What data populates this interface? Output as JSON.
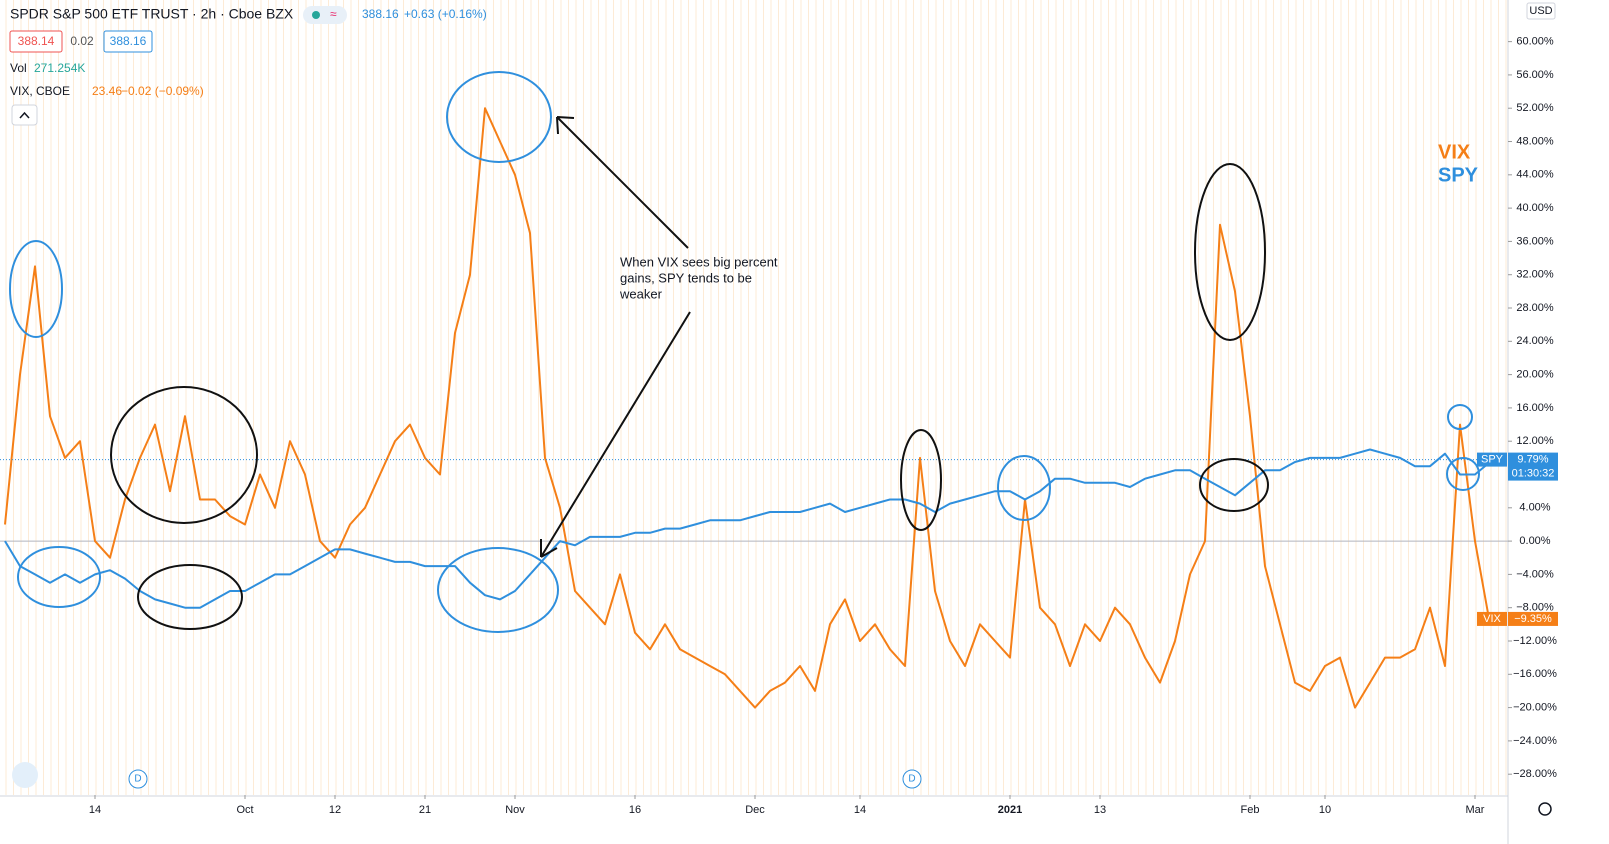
{
  "chart_data": {
    "type": "line",
    "title": "SPDR S&P 500 ETF TRUST · 2h · Cboe BZX",
    "header_price": "388.16",
    "header_change": "+0.63 (+0.16%)",
    "bid": "388.14",
    "spread": "0.02",
    "ask": "388.16",
    "volume_label": "Vol",
    "volume_value": "271.254K",
    "compare_label": "VIX, CBOE",
    "compare_price": "23.46",
    "compare_change": "−0.02 (−0.09%)",
    "currency": "USD",
    "annotation": [
      "When VIX sees big percent",
      "gains, SPY tends to be",
      "weaker"
    ],
    "categories": [
      null,
      null,
      null,
      null,
      null,
      null,
      "14",
      null,
      null,
      null,
      null,
      null,
      null,
      null,
      null,
      null,
      "Oct",
      null,
      null,
      null,
      null,
      null,
      "12",
      null,
      null,
      null,
      null,
      null,
      "21",
      null,
      null,
      null,
      null,
      null,
      "Nov",
      null,
      null,
      null,
      null,
      null,
      null,
      null,
      "16",
      null,
      null,
      null,
      null,
      null,
      null,
      null,
      "Dec",
      null,
      null,
      null,
      null,
      null,
      null,
      "14",
      null,
      null,
      null,
      null,
      null,
      null,
      null,
      null,
      null,
      "2021",
      null,
      null,
      null,
      null,
      null,
      "13",
      null,
      null,
      null,
      null,
      null,
      null,
      null,
      null,
      null,
      "Feb",
      null,
      null,
      null,
      null,
      "10",
      null,
      null,
      null,
      null,
      null,
      null,
      null,
      null,
      null,
      "Mar",
      null,
      null
    ],
    "ylim": [
      -30.5,
      65
    ],
    "yticks": [
      {
        "value": 60,
        "label": "60.00%"
      },
      {
        "value": 56,
        "label": "56.00%"
      },
      {
        "value": 52,
        "label": "52.00%"
      },
      {
        "value": 48,
        "label": "48.00%"
      },
      {
        "value": 44,
        "label": "44.00%"
      },
      {
        "value": 40,
        "label": "40.00%"
      },
      {
        "value": 36,
        "label": "36.00%"
      },
      {
        "value": 32,
        "label": "32.00%"
      },
      {
        "value": 28,
        "label": "28.00%"
      },
      {
        "value": 24,
        "label": "24.00%"
      },
      {
        "value": 20,
        "label": "20.00%"
      },
      {
        "value": 16,
        "label": "16.00%"
      },
      {
        "value": 12,
        "label": "12.00%"
      },
      {
        "value": 8,
        "label": "8.00%"
      },
      {
        "value": 4,
        "label": "4.00%"
      },
      {
        "value": 0,
        "label": "0.00%"
      },
      {
        "value": -4,
        "label": "−4.00%"
      },
      {
        "value": -8,
        "label": "−8.00%"
      },
      {
        "value": -12,
        "label": "−12.00%"
      },
      {
        "value": -16,
        "label": "−16.00%"
      },
      {
        "value": -20,
        "label": "−20.00%"
      },
      {
        "value": -24,
        "label": "−24.00%"
      },
      {
        "value": -28,
        "label": "−28.00%"
      }
    ],
    "series": [
      {
        "name": "VIX",
        "color": "#f57f17",
        "last_label": "−9.35%",
        "values": [
          2,
          20,
          33,
          15,
          10,
          12,
          0,
          -2,
          5,
          10,
          14,
          6,
          15,
          5,
          5,
          3,
          2,
          8,
          4,
          12,
          8,
          0,
          -2,
          2,
          4,
          8,
          12,
          14,
          10,
          8,
          25,
          32,
          52,
          48,
          44,
          37,
          10,
          4,
          -6,
          -8,
          -10,
          -4,
          -11,
          -13,
          -10,
          -13,
          -14,
          -15,
          -16,
          -18,
          -20,
          -18,
          -17,
          -15,
          -18,
          -10,
          -7,
          -12,
          -10,
          -13,
          -15,
          10,
          -6,
          -12,
          -15,
          -10,
          -12,
          -14,
          5,
          -8,
          -10,
          -15,
          -10,
          -12,
          -8,
          -10,
          -14,
          -17,
          -12,
          -4,
          0,
          38,
          30,
          15,
          -3,
          -10,
          -17,
          -18,
          -15,
          -14,
          -20,
          -17,
          -14,
          -14,
          -13,
          -8,
          -15,
          14,
          0,
          -10,
          -9.35
        ]
      },
      {
        "name": "SPY",
        "color": "#2f8fdd",
        "last_label": "9.79%",
        "countdown": "01:30:32",
        "values": [
          0,
          -3,
          -4,
          -5,
          -4,
          -5,
          -4,
          -3.5,
          -4.5,
          -6,
          -7,
          -7.5,
          -8,
          -8,
          -7,
          -6,
          -6,
          -5,
          -4,
          -4,
          -3,
          -2,
          -1,
          -1,
          -1.5,
          -2,
          -2.5,
          -2.5,
          -3,
          -3,
          -3,
          -5,
          -6.5,
          -7,
          -6,
          -4,
          -2,
          0,
          -0.5,
          0.5,
          0.5,
          0.5,
          1,
          1,
          1.5,
          1.5,
          2,
          2.5,
          2.5,
          2.5,
          3,
          3.5,
          3.5,
          3.5,
          4,
          4.5,
          3.5,
          4,
          4.5,
          5,
          5,
          4.5,
          3.5,
          4.5,
          5,
          5.5,
          6,
          6,
          5,
          6,
          7.5,
          7.5,
          7,
          7,
          7,
          6.5,
          7.5,
          8,
          8.5,
          8.5,
          7.5,
          6.5,
          5.5,
          7,
          8.5,
          8.5,
          9.5,
          10,
          10,
          10,
          10.5,
          11,
          10.5,
          10,
          9,
          9,
          10.5,
          8,
          8,
          9.5,
          9.79
        ]
      }
    ]
  }
}
